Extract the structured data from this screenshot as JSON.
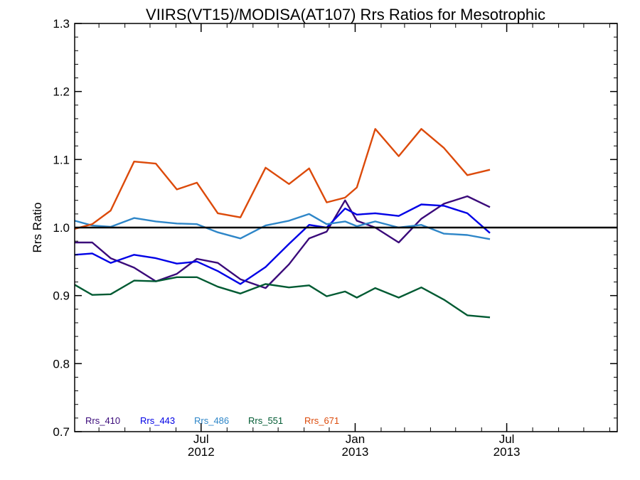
{
  "chart_data": {
    "type": "line",
    "title": "VIIRS(VT15)/MODISA(AT107)  Rrs Ratios for Mesotrophic",
    "xlabel": "",
    "ylabel": "Rrs Ratio",
    "ylim": [
      0.7,
      1.3
    ],
    "yticks": [
      0.7,
      0.8,
      0.9,
      1.0,
      1.1,
      1.2,
      1.3
    ],
    "ytick_labels": [
      "0.7",
      "0.8",
      "0.9",
      "1.0",
      "1.1",
      "1.2",
      "1.3"
    ],
    "xlim": [
      "2012-02-01",
      "2013-11-10"
    ],
    "xticks": [
      {
        "date": "2012-07-01",
        "label_top": "Jul",
        "label_bottom": "2012"
      },
      {
        "date": "2013-01-01",
        "label_top": "Jan",
        "label_bottom": "2013"
      },
      {
        "date": "2013-07-01",
        "label_top": "Jul",
        "label_bottom": "2013"
      }
    ],
    "reference_line": 1.0,
    "grid": false,
    "legend_position": "bottom-left",
    "x": [
      "2012-02-01",
      "2012-02-22",
      "2012-03-15",
      "2012-04-12",
      "2012-05-08",
      "2012-06-02",
      "2012-06-26",
      "2012-07-21",
      "2012-08-17",
      "2012-09-16",
      "2012-10-14",
      "2012-11-07",
      "2012-11-28",
      "2012-12-20",
      "2013-01-03",
      "2013-01-25",
      "2013-02-22",
      "2013-03-21",
      "2013-04-17",
      "2013-05-15",
      "2013-06-11",
      "2013-07-03",
      "2013-07-24",
      "2013-08-22",
      "2013-09-21",
      "2013-10-22",
      "2013-11-10"
    ],
    "series": [
      {
        "name": "Rrs_410",
        "color": "#3a0a7a",
        "values": [
          0.978,
          0.978,
          0.955,
          0.941,
          0.921,
          0.932,
          0.954,
          0.948,
          0.924,
          0.911,
          0.946,
          0.984,
          0.994,
          1.04,
          1.01,
          1.0,
          0.978,
          1.013,
          1.035,
          1.046,
          1.03,
          null,
          null,
          null,
          null,
          null,
          null
        ]
      },
      {
        "name": "Rrs_443",
        "color": "#0000e6",
        "values": [
          0.96,
          0.962,
          0.948,
          0.96,
          0.955,
          0.947,
          0.95,
          0.936,
          0.917,
          0.942,
          0.976,
          1.004,
          1.0,
          1.028,
          1.019,
          1.021,
          1.017,
          1.034,
          1.032,
          1.021,
          0.992,
          null,
          null,
          null,
          null,
          null,
          null
        ]
      },
      {
        "name": "Rrs_486",
        "color": "#2e86c8",
        "values": [
          1.01,
          1.003,
          1.001,
          1.014,
          1.009,
          1.006,
          1.005,
          0.993,
          0.984,
          1.003,
          1.01,
          1.02,
          1.005,
          1.009,
          1.002,
          1.009,
          1.0,
          1.004,
          0.991,
          0.989,
          0.983,
          null,
          null,
          null,
          null,
          null,
          null
        ]
      },
      {
        "name": "Rrs_551",
        "color": "#005a32",
        "values": [
          0.916,
          0.901,
          0.902,
          0.922,
          0.921,
          0.927,
          0.927,
          0.913,
          0.903,
          0.917,
          0.912,
          0.915,
          0.899,
          0.906,
          0.897,
          0.911,
          0.897,
          0.912,
          0.894,
          0.871,
          0.868,
          null,
          null,
          null,
          null,
          null,
          null
        ]
      },
      {
        "name": "Rrs_671",
        "color": "#dc4a0a",
        "values": [
          0.998,
          1.005,
          1.025,
          1.097,
          1.094,
          1.056,
          1.066,
          1.021,
          1.015,
          1.088,
          1.064,
          1.087,
          1.037,
          1.044,
          1.059,
          1.145,
          1.105,
          1.145,
          1.117,
          1.077,
          1.085,
          null,
          null,
          null,
          null,
          null,
          null
        ]
      }
    ]
  }
}
